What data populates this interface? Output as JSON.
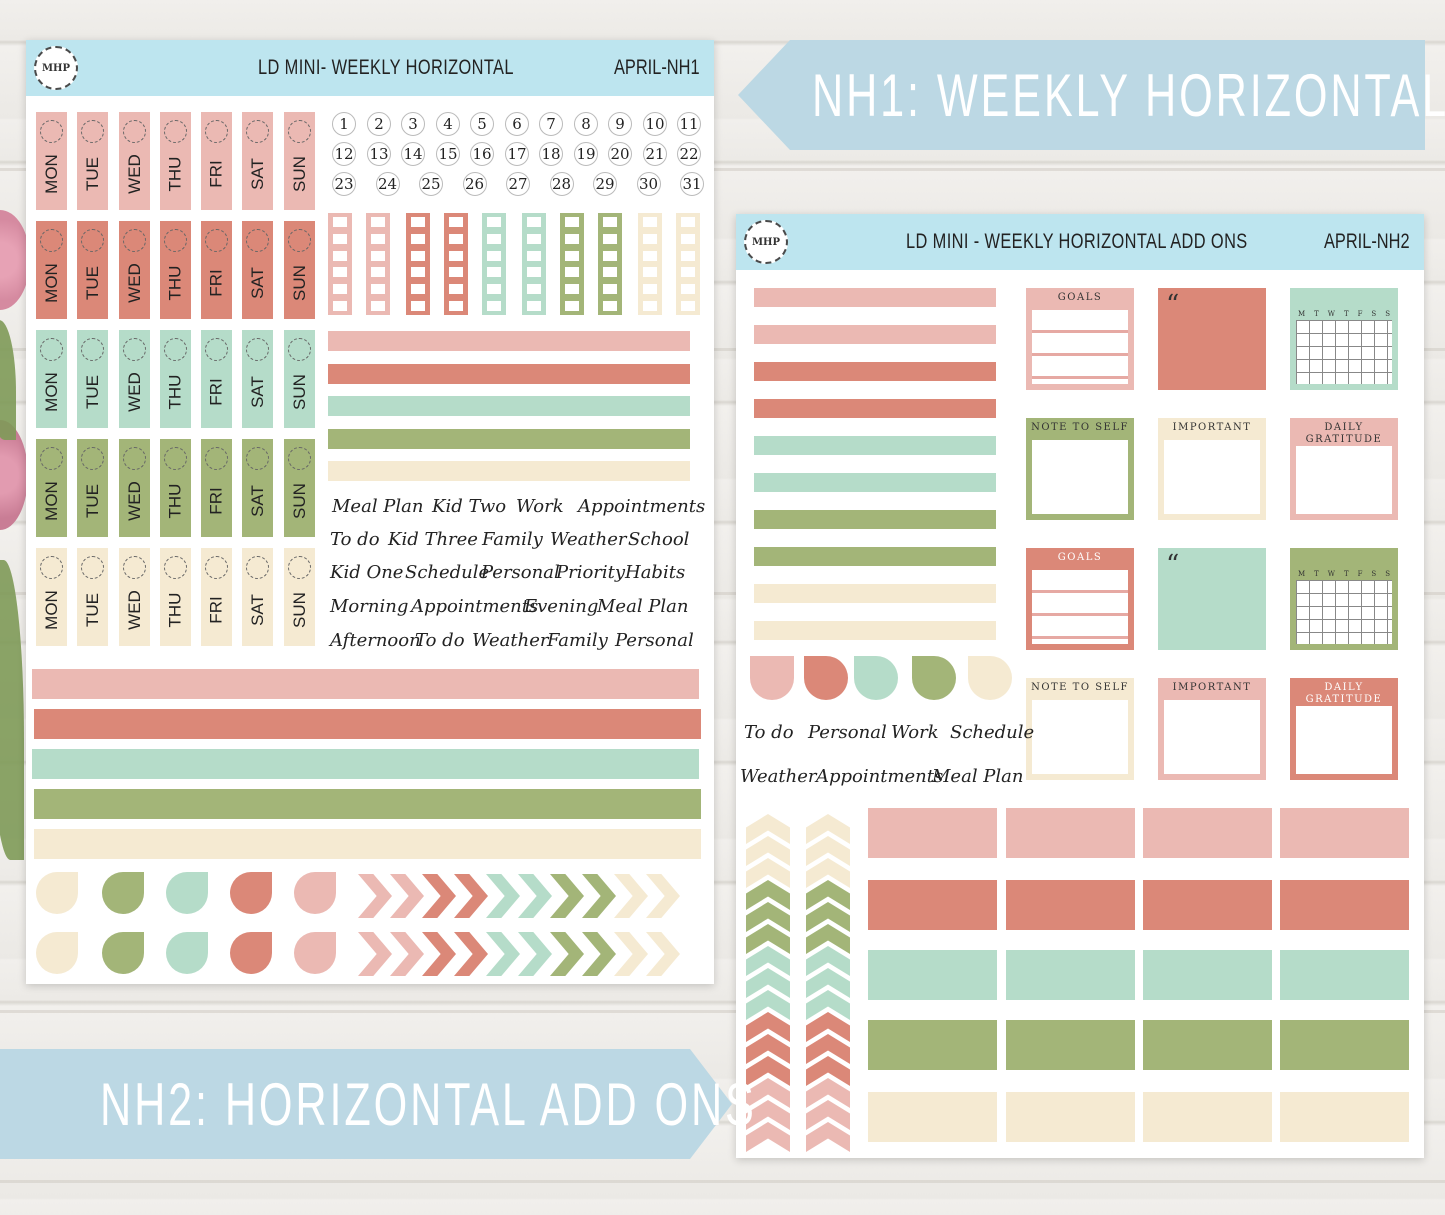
{
  "banners": {
    "nh1": "NH1: WEEKLY HORIZONTAL",
    "nh2": "NH2: HORIZONTAL ADD ONS"
  },
  "sheet1": {
    "logo": "MHP",
    "title": "LD MINI- WEEKLY HORIZONTAL",
    "code": "APRIL-NH1",
    "days": [
      "MON",
      "TUE",
      "WED",
      "THU",
      "FRI",
      "SAT",
      "SUN"
    ],
    "numbers": [
      "1",
      "2",
      "3",
      "4",
      "5",
      "6",
      "7",
      "8",
      "9",
      "10",
      "11",
      "12",
      "13",
      "14",
      "15",
      "16",
      "17",
      "18",
      "19",
      "20",
      "21",
      "22",
      "23",
      "24",
      "25",
      "26",
      "27",
      "28",
      "29",
      "30",
      "31"
    ],
    "words": [
      [
        "Meal Plan",
        "Kid Two",
        "Work",
        "Appointments"
      ],
      [
        "To do",
        "Kid Three",
        "Family",
        "Weather",
        "School"
      ],
      [
        "Kid One",
        "Schedule",
        "Personal",
        "Priority",
        "Habits"
      ],
      [
        "Morning",
        "Appointments",
        "Evening",
        "Meal Plan"
      ],
      [
        "Afternoon",
        "To do",
        "Weather",
        "Family",
        "Personal"
      ]
    ]
  },
  "sheet2": {
    "logo": "MHP",
    "title": "LD MINI - WEEKLY HORIZONTAL ADD ONS",
    "code": "APRIL-NH2",
    "labels": {
      "goals": "GOALS",
      "note": "NOTE TO SELF",
      "important": "IMPORTANT",
      "gratitude1": "DAILY",
      "gratitude2": "GRATITUDE",
      "quote": "“"
    },
    "cal_days": [
      "M",
      "T",
      "W",
      "T",
      "F",
      "S",
      "S"
    ],
    "words": [
      [
        "To do",
        "Personal",
        "Work",
        "Schedule"
      ],
      [
        "Weather",
        "Appointments",
        "Meal Plan"
      ]
    ]
  },
  "colors": {
    "pink": "#ebb9b3",
    "coral": "#db8878",
    "mint": "#b5dcc9",
    "olive": "#a3b578",
    "cream": "#f5ead2",
    "header": "#bde5ef",
    "banner": "#bcd8e4"
  }
}
